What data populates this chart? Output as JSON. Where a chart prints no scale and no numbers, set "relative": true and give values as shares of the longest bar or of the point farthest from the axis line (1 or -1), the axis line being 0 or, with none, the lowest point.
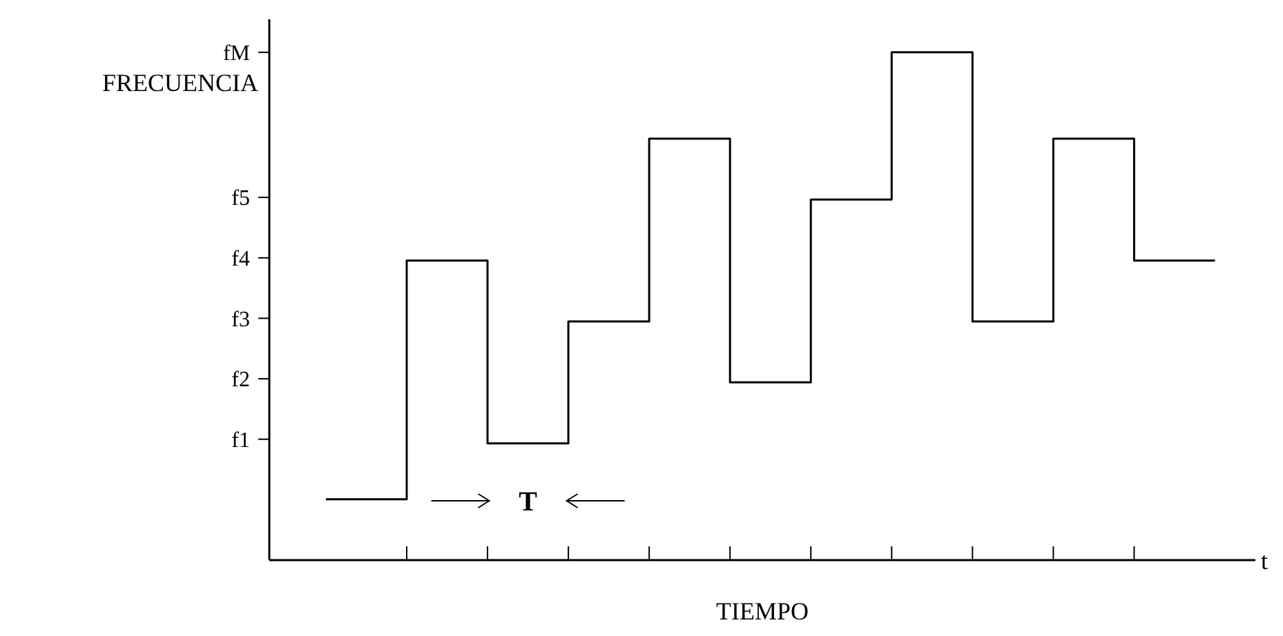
{
  "chart_data": {
    "type": "step",
    "relative": true,
    "ylabel": "FRECUENCIA",
    "xlabel": "TIEMPO",
    "categories": [
      null,
      null,
      null,
      null,
      null,
      null,
      null,
      null,
      null,
      null,
      null,
      null
    ],
    "series": [
      {
        "color": "#000000",
        "values": [
          0.12,
          0.59,
          0.23,
          0.47,
          0.83,
          0.35,
          0.71,
          1,
          0.47,
          0.83,
          0.59,
          0.59
        ]
      }
    ],
    "annotations": [
      "f1",
      "f2",
      "f3",
      "f4",
      "f5",
      "fM",
      "T",
      "t"
    ]
  }
}
